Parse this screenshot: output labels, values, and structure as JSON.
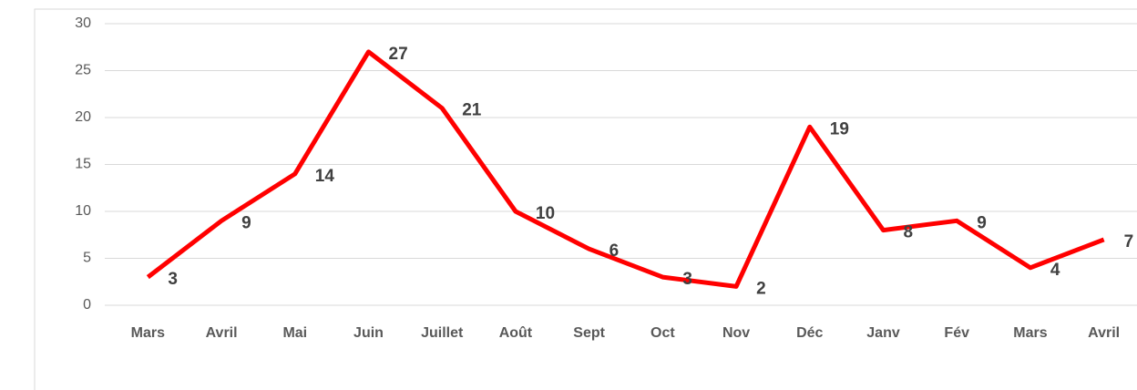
{
  "chart_data": {
    "type": "line",
    "categories": [
      "Mars",
      "Avril",
      "Mai",
      "Juin",
      "Juillet",
      "Août",
      "Sept",
      "Oct",
      "Nov",
      "Déc",
      "Janv",
      "Fév",
      "Mars",
      "Avril"
    ],
    "values": [
      3,
      9,
      14,
      27,
      21,
      10,
      6,
      3,
      2,
      19,
      8,
      9,
      4,
      7
    ],
    "color": "#ff0000",
    "ylim": [
      0,
      30
    ],
    "yticks": [
      0,
      5,
      10,
      15,
      20,
      25,
      30
    ],
    "grid": true
  }
}
